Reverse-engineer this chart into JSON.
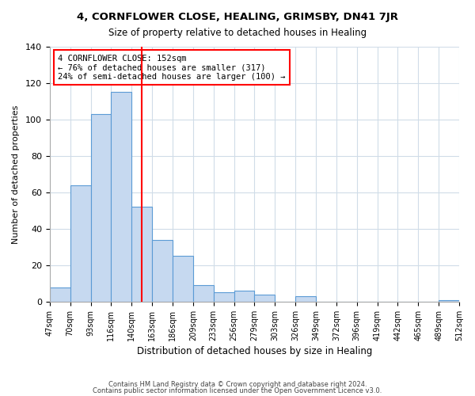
{
  "title1": "4, CORNFLOWER CLOSE, HEALING, GRIMSBY, DN41 7JR",
  "title2": "Size of property relative to detached houses in Healing",
  "xlabel": "Distribution of detached houses by size in Healing",
  "ylabel": "Number of detached properties",
  "bin_labels": [
    "47sqm",
    "70sqm",
    "93sqm",
    "116sqm",
    "140sqm",
    "163sqm",
    "186sqm",
    "209sqm",
    "233sqm",
    "256sqm",
    "279sqm",
    "303sqm",
    "326sqm",
    "349sqm",
    "372sqm",
    "396sqm",
    "419sqm",
    "442sqm",
    "465sqm",
    "489sqm",
    "512sqm"
  ],
  "bar_heights": [
    8,
    64,
    103,
    115,
    52,
    34,
    25,
    9,
    5,
    6,
    4,
    0,
    3,
    0,
    0,
    0,
    0,
    0,
    0,
    1
  ],
  "bar_color": "#c6d9f0",
  "bar_edge_color": "#5b9bd5",
  "vline_x": 4.5,
  "vline_color": "red",
  "annotation_text": "4 CORNFLOWER CLOSE: 152sqm\n← 76% of detached houses are smaller (317)\n24% of semi-detached houses are larger (100) →",
  "annotation_box_edge": "red",
  "ylim": [
    0,
    140
  ],
  "yticks": [
    0,
    20,
    40,
    60,
    80,
    100,
    120,
    140
  ],
  "footer1": "Contains HM Land Registry data © Crown copyright and database right 2024.",
  "footer2": "Contains public sector information licensed under the Open Government Licence v3.0.",
  "bg_color": "#ffffff",
  "grid_color": "#d0dce8"
}
